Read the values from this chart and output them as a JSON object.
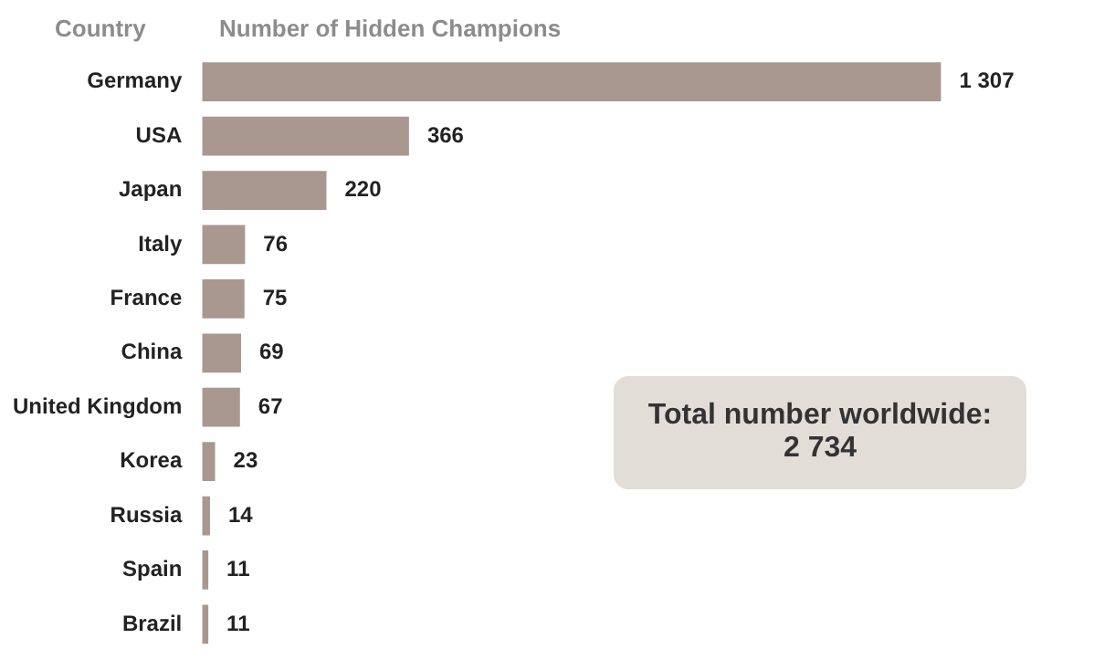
{
  "chart_data": {
    "type": "bar",
    "orientation": "horizontal",
    "title": "Number of Hidden Champions",
    "ylabel": "Country",
    "categories": [
      "Germany",
      "USA",
      "Japan",
      "Italy",
      "France",
      "China",
      "United Kingdom",
      "Korea",
      "Russia",
      "Spain",
      "Brazil"
    ],
    "values": [
      1307,
      366,
      220,
      76,
      75,
      69,
      67,
      23,
      14,
      11,
      11
    ],
    "value_labels": [
      "1 307",
      "366",
      "220",
      "76",
      "75",
      "69",
      "67",
      "23",
      "14",
      "11",
      "11"
    ],
    "color": "#a89890",
    "legend": false,
    "annotations": [
      "Total number worldwide:\n2 734"
    ]
  }
}
